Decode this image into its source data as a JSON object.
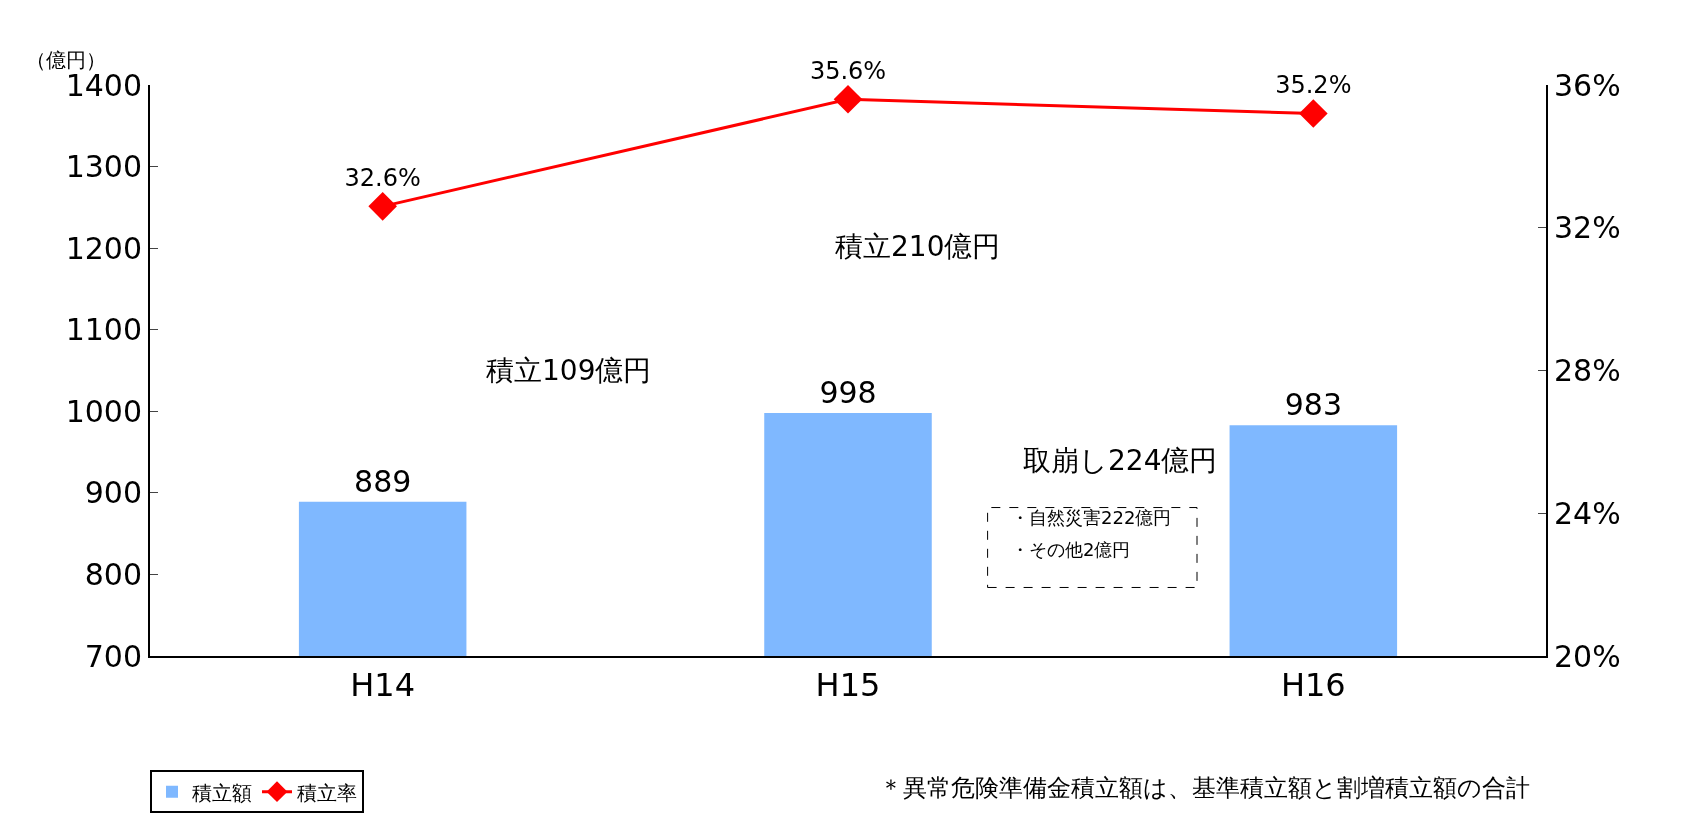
{
  "chart_data": {
    "type": "bar",
    "ylabel": "（億円）",
    "categories": [
      "H14",
      "H15",
      "H16"
    ],
    "series": [
      {
        "name": "積立額",
        "color": "#7fb8ff",
        "values": [
          889,
          998,
          983
        ],
        "value_labels": [
          "889",
          "998",
          "983"
        ]
      },
      {
        "name": "積立率",
        "type": "line",
        "axis": "y2",
        "color": "#ff0000",
        "marker": "diamond",
        "values": [
          32.6,
          35.6,
          35.2
        ],
        "value_labels": [
          "32.6%",
          "35.6%",
          "35.2%"
        ]
      }
    ],
    "ylim": [
      700,
      1400
    ],
    "yticks": [
      700,
      800,
      900,
      1000,
      1100,
      1200,
      1300,
      1400
    ],
    "y2lim": [
      20,
      36
    ],
    "y2ticks": [
      {
        "value": 20,
        "label": "20%"
      },
      {
        "value": 24,
        "label": "24%"
      },
      {
        "value": 28,
        "label": "28%"
      },
      {
        "value": 32,
        "label": "32%"
      },
      {
        "value": 36,
        "label": "36%"
      }
    ],
    "legend": "bottom left",
    "annotations": [
      "積立109億円",
      "積立210億円",
      "取崩し224億円",
      "・自然災害222億円",
      "・その他2億円",
      "＊異常危険準備金積立額は、基準積立額と割増積立額の合計"
    ]
  }
}
